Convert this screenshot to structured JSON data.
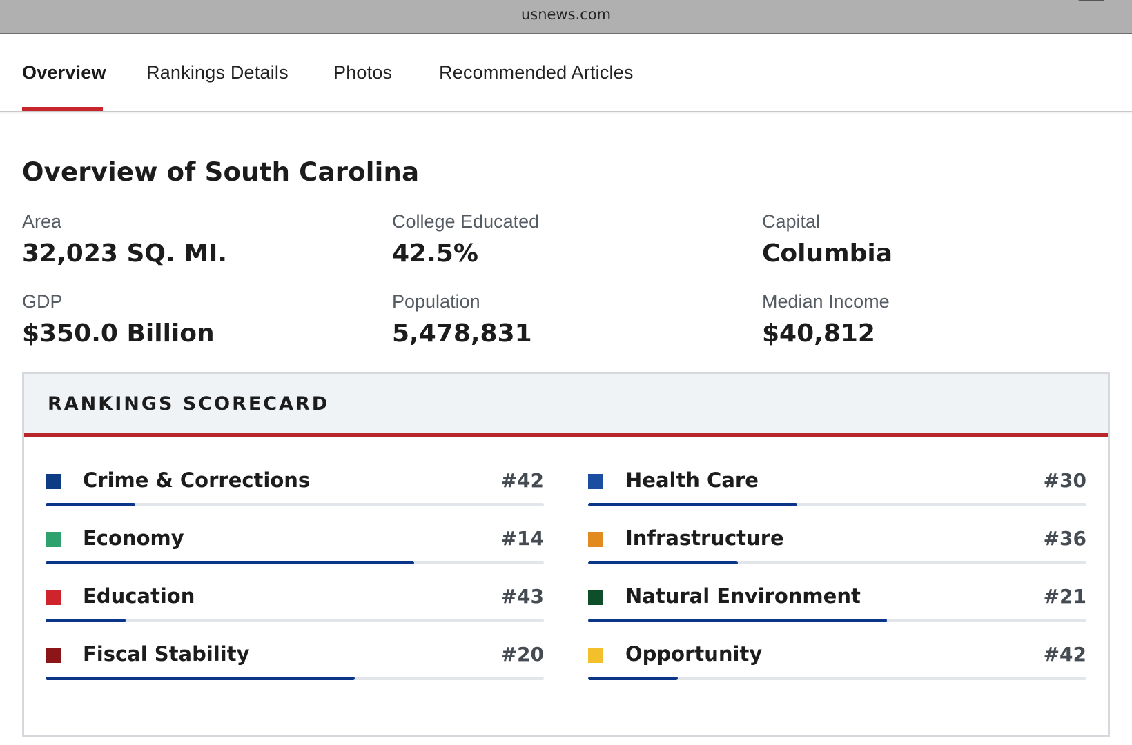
{
  "browser": {
    "url": "usnews.com"
  },
  "tabs": [
    {
      "label": "Overview",
      "active": true
    },
    {
      "label": "Rankings Details",
      "active": false
    },
    {
      "label": "Photos",
      "active": false
    },
    {
      "label": "Recommended Articles",
      "active": false
    }
  ],
  "colors": {
    "accent": "#c8262c",
    "bar_fill": "#0b3589",
    "bar_track": "#e2e5ea"
  },
  "overview": {
    "title": "Overview of South Carolina",
    "stats": [
      {
        "label": "Area",
        "value": "32,023 SQ. MI."
      },
      {
        "label": "College Educated",
        "value": "42.5%"
      },
      {
        "label": "Capital",
        "value": "Columbia"
      },
      {
        "label": "GDP",
        "value": "$350.0 Billion"
      },
      {
        "label": "Population",
        "value": "5,478,831"
      },
      {
        "label": "Median Income",
        "value": "$40,812"
      }
    ]
  },
  "scorecard": {
    "title": "RANKINGS SCORECARD",
    "items": [
      {
        "name": "Crime & Corrections",
        "rank": "#42",
        "color": "#0d3b84",
        "fill": 0.18
      },
      {
        "name": "Health Care",
        "rank": "#30",
        "color": "#1b4ea0",
        "fill": 0.42
      },
      {
        "name": "Economy",
        "rank": "#14",
        "color": "#2fa16d",
        "fill": 0.74
      },
      {
        "name": "Infrastructure",
        "rank": "#36",
        "color": "#e08a20",
        "fill": 0.3
      },
      {
        "name": "Education",
        "rank": "#43",
        "color": "#d0242c",
        "fill": 0.16
      },
      {
        "name": "Natural Environment",
        "rank": "#21",
        "color": "#0f4e2a",
        "fill": 0.6
      },
      {
        "name": "Fiscal Stability",
        "rank": "#20",
        "color": "#8c1518",
        "fill": 0.62
      },
      {
        "name": "Opportunity",
        "rank": "#42",
        "color": "#f1c02a",
        "fill": 0.18
      }
    ]
  }
}
